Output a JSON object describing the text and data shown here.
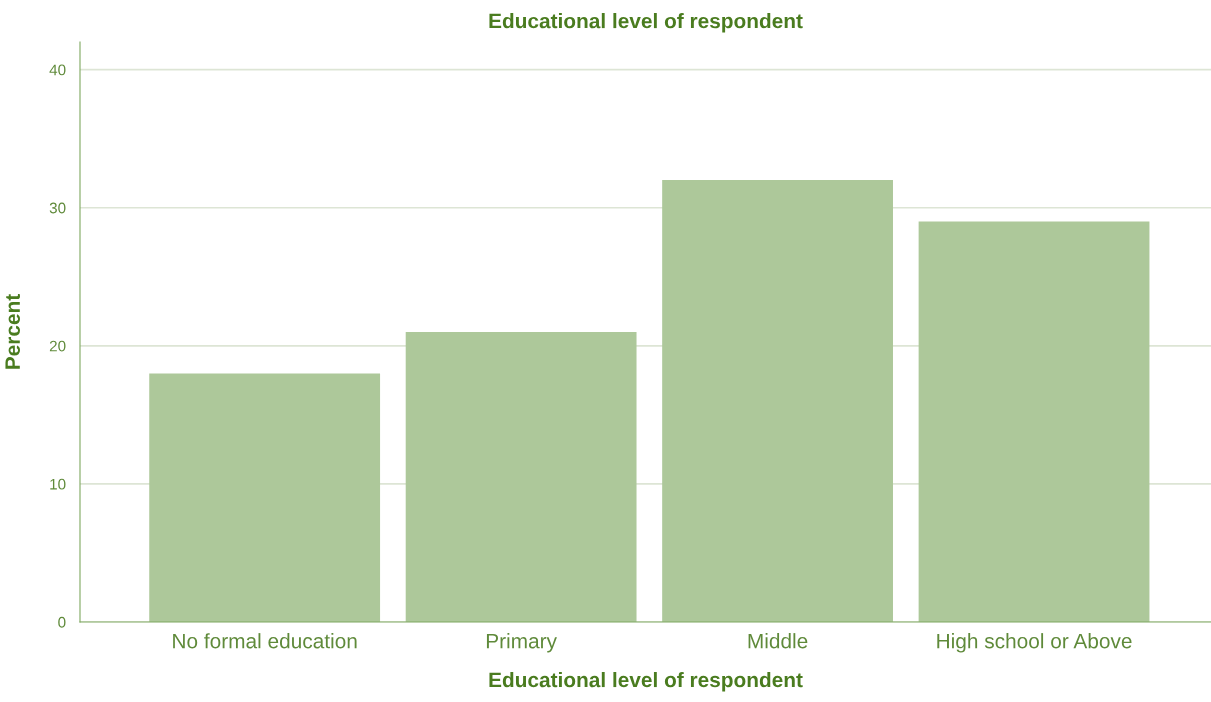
{
  "chart_data": {
    "type": "bar",
    "title": "Educational level of respondent",
    "xlabel": "Educational level of respondent",
    "ylabel": "Percent",
    "categories": [
      "No formal education",
      "Primary",
      "Middle",
      "High school or Above"
    ],
    "values": [
      18,
      21,
      32,
      29
    ],
    "color": "#adc89a",
    "ylim": [
      0,
      42
    ],
    "yticks": [
      0,
      10,
      20,
      30,
      40
    ],
    "grid": "y",
    "legend": false
  }
}
